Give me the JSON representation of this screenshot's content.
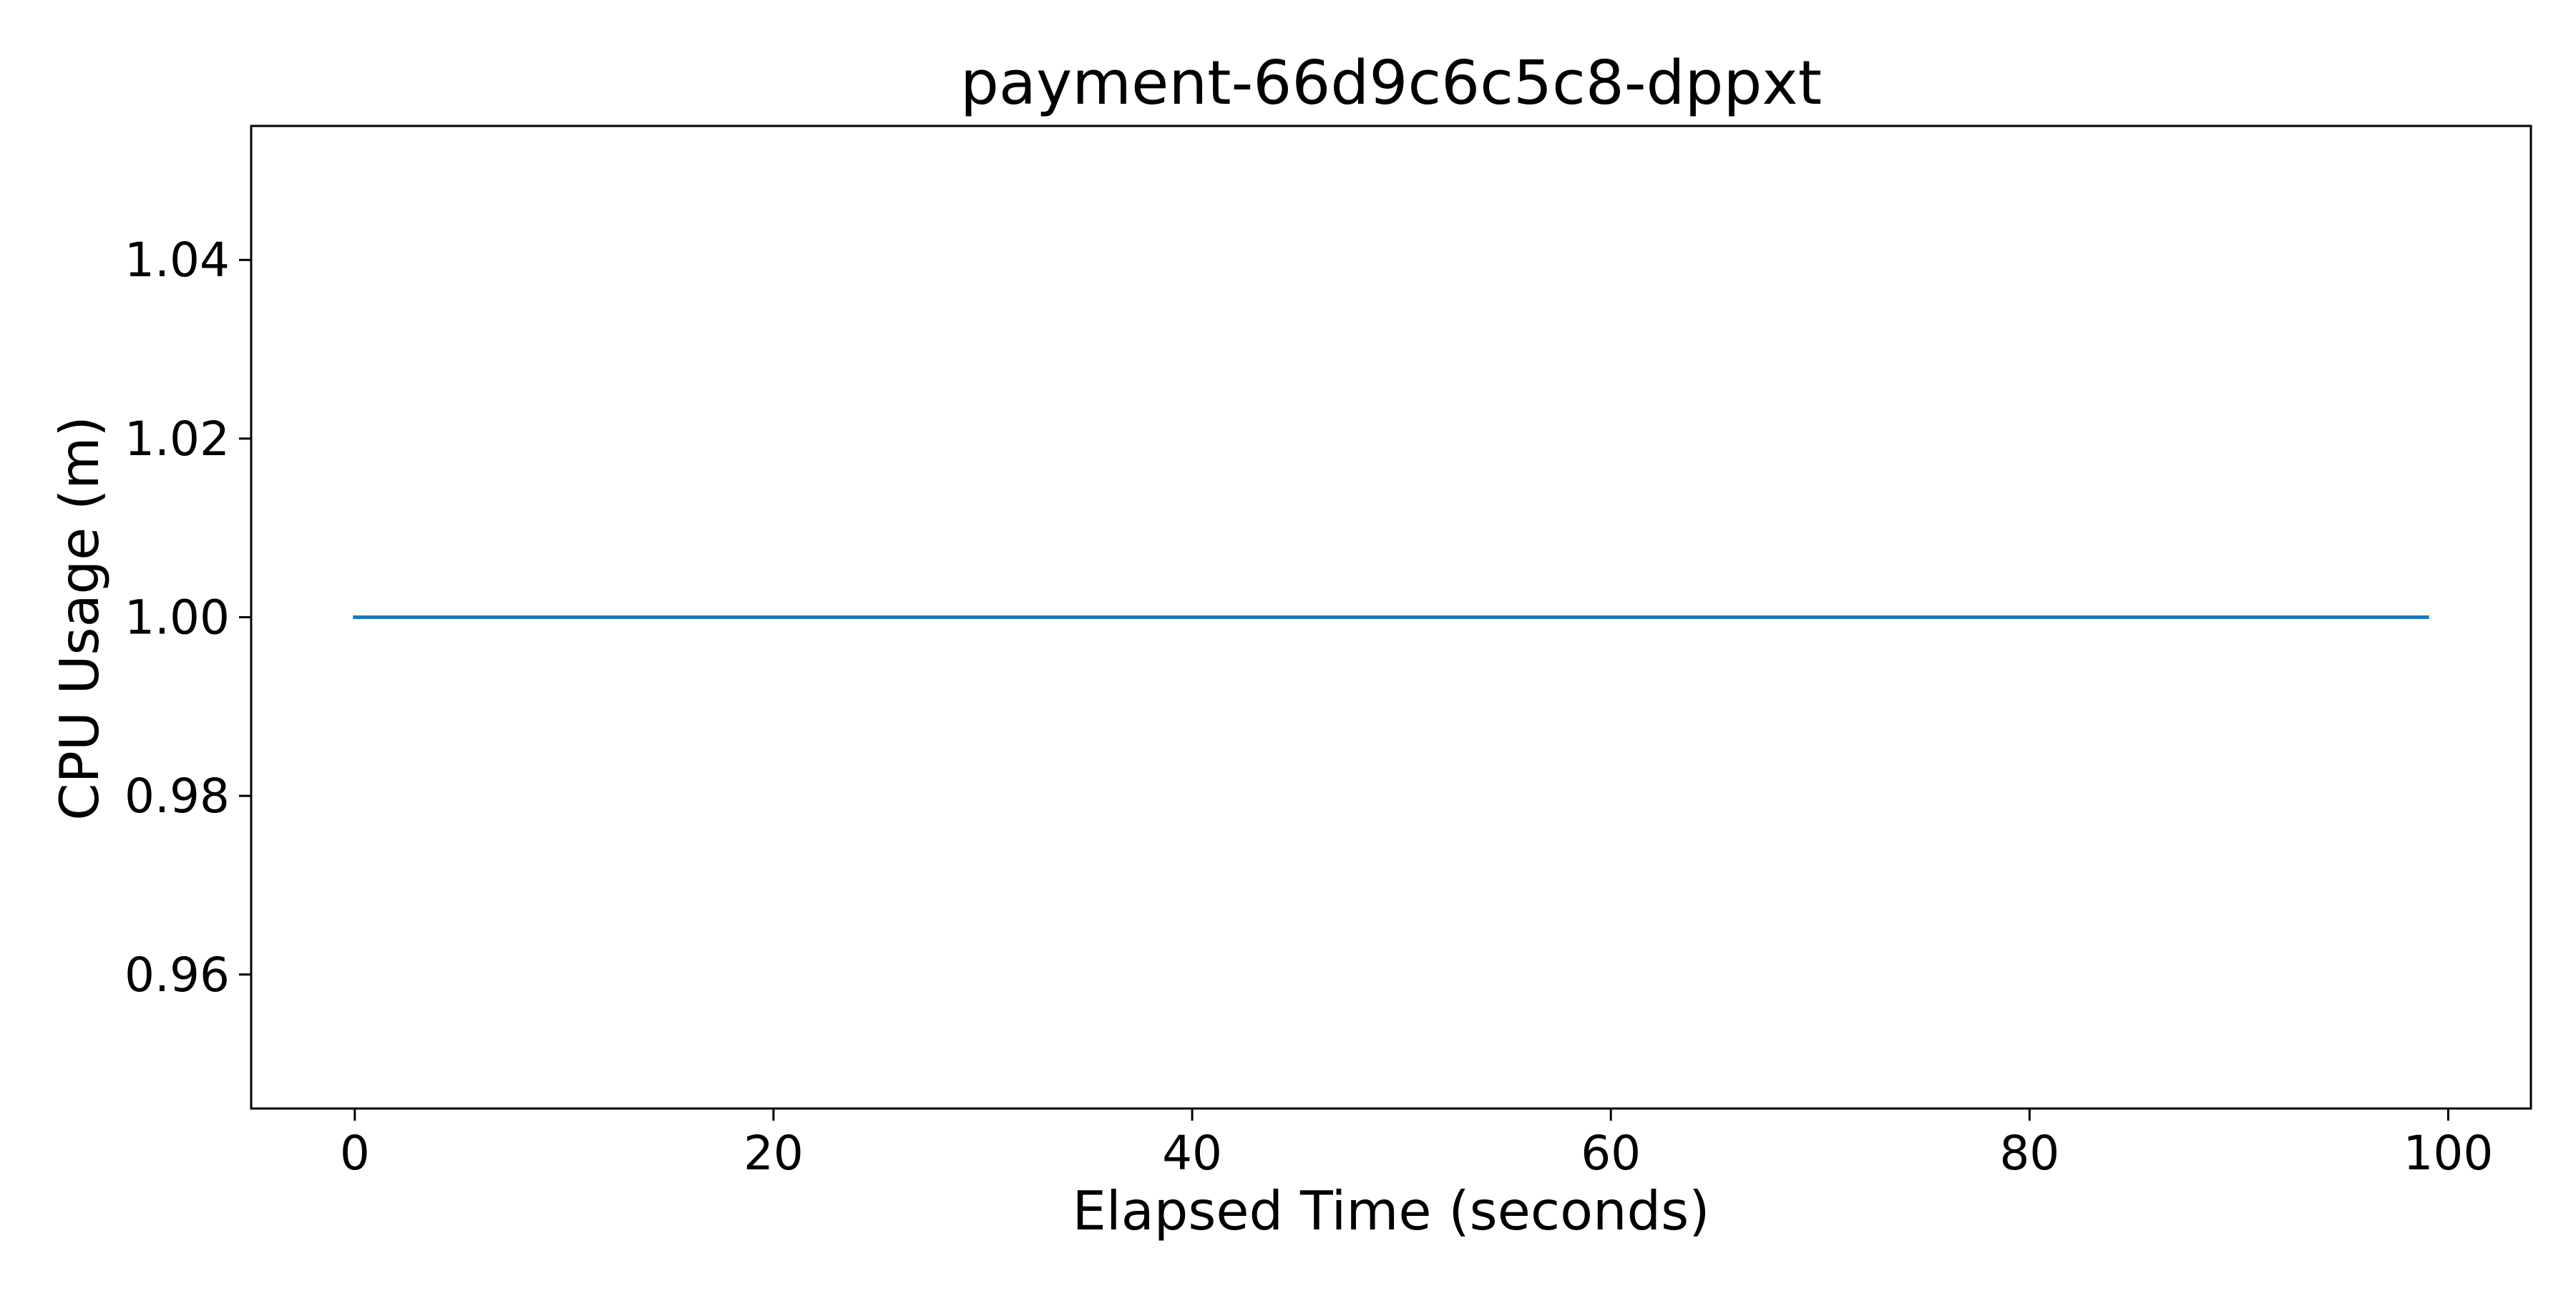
{
  "chart_data": {
    "type": "line",
    "title": "payment-66d9c6c5c8-dppxt",
    "xlabel": "Elapsed Time (seconds)",
    "ylabel": "CPU Usage (m)",
    "xlim": [
      -4.95,
      103.95
    ],
    "ylim": [
      0.945,
      1.055
    ],
    "x_ticks": [
      {
        "value": 0,
        "label": "0"
      },
      {
        "value": 20,
        "label": "20"
      },
      {
        "value": 40,
        "label": "40"
      },
      {
        "value": 60,
        "label": "60"
      },
      {
        "value": 80,
        "label": "80"
      },
      {
        "value": 100,
        "label": "100"
      }
    ],
    "y_ticks": [
      {
        "value": 0.96,
        "label": "0.96"
      },
      {
        "value": 0.98,
        "label": "0.98"
      },
      {
        "value": 1.0,
        "label": "1.00"
      },
      {
        "value": 1.02,
        "label": "1.02"
      },
      {
        "value": 1.04,
        "label": "1.04"
      }
    ],
    "grid": false,
    "series": [
      {
        "color": "#1f77b4",
        "x": [
          0,
          99
        ],
        "y": [
          1.0,
          1.0
        ]
      }
    ]
  }
}
